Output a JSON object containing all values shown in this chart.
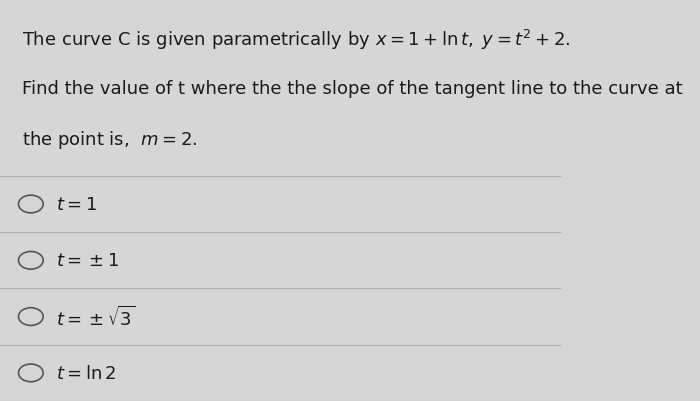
{
  "background_color": "#d6d6d6",
  "card_color": "#e8e8e8",
  "text_color": "#1a1a1a",
  "line1": "The curve C is given parametrically by $x = 1 + \\ln t,\\; y = t^2 + 2$.",
  "line2": "Find the value of t where the the slope of the tangent line to the curve at",
  "line3": "the point is,  $m = 2$.",
  "options": [
    "$t = 1$",
    "$t = \\pm 1$",
    "$t = \\pm\\sqrt{3}$",
    "$t = \\ln 2$"
  ],
  "divider_color": "#b0b0b0",
  "circle_color": "#555555",
  "font_size_text": 13,
  "font_size_options": 13
}
